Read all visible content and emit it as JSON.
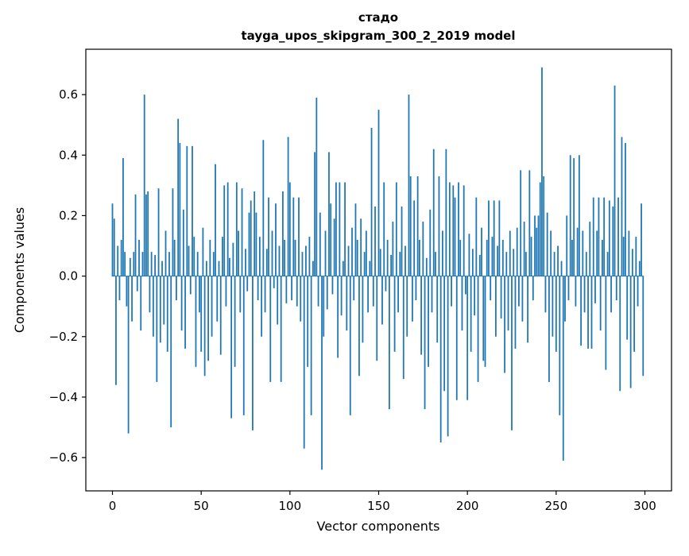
{
  "figure": {
    "background": "#ffffff"
  },
  "chart_data": {
    "type": "bar",
    "title": "стадо",
    "subtitle": "tayga_upos_skipgram_300_2_2019 model",
    "xlabel": "Vector components",
    "ylabel": "Components values",
    "bar_color": "#1f77b4",
    "spine_color": "#000000",
    "n_bars": 300,
    "xlim": [
      -15,
      315
    ],
    "ylim": [
      -0.71,
      0.75
    ],
    "xticks": [
      0,
      50,
      100,
      150,
      200,
      250,
      300
    ],
    "xtick_labels": [
      "0",
      "50",
      "100",
      "150",
      "200",
      "250",
      "300"
    ],
    "yticks": [
      -0.6,
      -0.4,
      -0.2,
      0.0,
      0.2,
      0.4,
      0.6
    ],
    "ytick_labels": [
      "−0.6",
      "−0.4",
      "−0.2",
      "0.0",
      "0.2",
      "0.4",
      "0.6"
    ],
    "grid": false,
    "legend": "none",
    "values": [
      0.24,
      0.19,
      -0.36,
      0.1,
      -0.08,
      0.12,
      0.39,
      0.08,
      -0.1,
      -0.52,
      0.06,
      -0.15,
      0.08,
      0.27,
      -0.05,
      0.12,
      -0.18,
      0.08,
      0.6,
      0.27,
      0.28,
      -0.12,
      0.08,
      -0.2,
      0.07,
      -0.35,
      0.29,
      -0.22,
      0.05,
      -0.16,
      0.15,
      -0.25,
      0.08,
      -0.5,
      0.29,
      0.12,
      -0.08,
      0.52,
      0.44,
      -0.18,
      0.22,
      -0.24,
      0.43,
      0.1,
      -0.06,
      0.43,
      0.13,
      -0.3,
      0.08,
      -0.12,
      -0.25,
      0.16,
      -0.33,
      0.05,
      -0.28,
      0.12,
      -0.2,
      0.08,
      0.37,
      -0.15,
      0.05,
      -0.26,
      0.13,
      0.3,
      -0.1,
      0.31,
      0.06,
      -0.47,
      0.11,
      -0.3,
      0.31,
      0.15,
      -0.12,
      0.29,
      -0.46,
      0.09,
      -0.05,
      0.21,
      0.25,
      -0.51,
      0.28,
      0.21,
      -0.08,
      0.13,
      -0.2,
      0.45,
      -0.12,
      0.09,
      0.26,
      -0.35,
      0.15,
      -0.04,
      0.24,
      -0.16,
      0.1,
      -0.35,
      0.28,
      0.12,
      -0.09,
      0.46,
      0.31,
      -0.08,
      0.26,
      0.12,
      -0.1,
      0.26,
      -0.15,
      0.08,
      -0.57,
      0.1,
      -0.3,
      0.13,
      -0.46,
      0.05,
      0.41,
      0.59,
      -0.1,
      0.21,
      -0.64,
      -0.2,
      0.15,
      -0.11,
      0.41,
      0.24,
      -0.06,
      0.19,
      0.31,
      -0.27,
      0.31,
      -0.13,
      0.05,
      0.31,
      -0.18,
      0.1,
      -0.46,
      0.16,
      -0.08,
      0.24,
      0.12,
      -0.33,
      0.19,
      -0.22,
      0.08,
      0.15,
      -0.12,
      0.05,
      0.49,
      -0.1,
      0.23,
      -0.28,
      0.55,
      0.09,
      -0.16,
      0.31,
      -0.05,
      0.12,
      -0.44,
      0.07,
      0.18,
      -0.25,
      0.31,
      -0.12,
      0.08,
      0.23,
      -0.34,
      0.1,
      -0.2,
      0.6,
      0.33,
      -0.15,
      0.25,
      -0.08,
      0.33,
      0.12,
      -0.26,
      0.18,
      -0.44,
      0.06,
      -0.3,
      0.22,
      -0.12,
      0.42,
      0.08,
      -0.22,
      0.33,
      -0.55,
      0.15,
      -0.38,
      0.42,
      -0.53,
      0.31,
      -0.1,
      0.3,
      0.26,
      -0.41,
      0.31,
      0.12,
      -0.18,
      0.3,
      -0.06,
      -0.41,
      0.14,
      -0.25,
      0.09,
      -0.13,
      0.26,
      -0.35,
      0.07,
      0.16,
      -0.28,
      -0.3,
      0.12,
      0.25,
      -0.08,
      0.13,
      0.25,
      -0.2,
      0.1,
      0.25,
      -0.14,
      0.12,
      -0.32,
      0.08,
      -0.18,
      0.15,
      -0.51,
      0.09,
      -0.24,
      0.16,
      -0.1,
      0.35,
      -0.15,
      0.18,
      0.08,
      -0.22,
      0.35,
      0.13,
      -0.08,
      0.2,
      0.16,
      0.2,
      0.31,
      0.69,
      0.33,
      -0.12,
      0.21,
      -0.35,
      0.15,
      -0.2,
      0.08,
      -0.25,
      0.1,
      -0.46,
      0.05,
      -0.61,
      -0.15,
      0.2,
      -0.08,
      0.4,
      0.12,
      0.39,
      -0.1,
      0.16,
      0.4,
      -0.23,
      0.15,
      -0.12,
      0.08,
      -0.24,
      0.18,
      -0.24,
      0.26,
      -0.09,
      0.15,
      0.26,
      -0.18,
      0.12,
      0.26,
      -0.31,
      0.08,
      0.25,
      -0.12,
      0.23,
      0.63,
      -0.08,
      0.26,
      -0.38,
      0.46,
      0.13,
      0.44,
      -0.21,
      0.15,
      -0.37,
      0.09,
      -0.25,
      0.13,
      -0.1,
      0.05,
      0.24,
      -0.33
    ]
  }
}
